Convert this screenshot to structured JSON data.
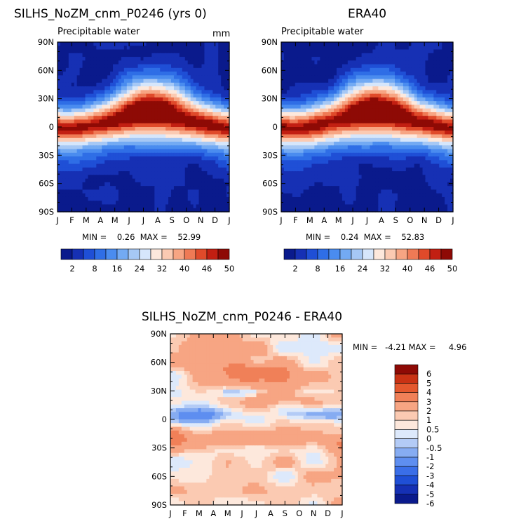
{
  "panels": {
    "model": {
      "title": "SILHS_NoZM_cnm_P0246 (yrs 0)",
      "subtitle": "Precipitable water",
      "units": "mm",
      "min_max": "MIN =    0.26  MAX =    52.99"
    },
    "obs": {
      "title": "ERA40",
      "subtitle": "Precipitable water",
      "min_max": "MIN =    0.24  MAX =    52.83"
    },
    "diff": {
      "title": "SILHS_NoZM_cnm_P0246 - ERA40",
      "min_max": "MIN =   -4.21 MAX =     4.96"
    }
  },
  "colors": {
    "abs_scale": [
      "#0a1a8c",
      "#1630b4",
      "#1f4fd6",
      "#2f6ee6",
      "#4a8cef",
      "#73aaf3",
      "#a6c8f5",
      "#d6e6fb",
      "#fde8dc",
      "#fbcab2",
      "#f7a583",
      "#ef7a55",
      "#e04a2a",
      "#c21f12",
      "#8e0a05"
    ],
    "diff_scale": [
      "#0a1a8c",
      "#1530b4",
      "#1f4fd6",
      "#3a6ee8",
      "#5e8ef0",
      "#86acf2",
      "#b3cbf6",
      "#dde9fb",
      "#fde8dc",
      "#fbcab2",
      "#f7a583",
      "#f08058",
      "#e4582e",
      "#c93214",
      "#8e0a05"
    ]
  },
  "chart_data": [
    {
      "type": "heatmap",
      "title": "SILHS_NoZM_cnm_P0246 (yrs 0)",
      "subtitle": "Precipitable water",
      "units": "mm",
      "x": [
        "J",
        "F",
        "M",
        "A",
        "M",
        "J",
        "J",
        "A",
        "S",
        "O",
        "N",
        "D",
        "J"
      ],
      "y_ticks": [
        "90N",
        "60N",
        "30N",
        "0",
        "30S",
        "60S",
        "90S"
      ],
      "ylim": [
        -90,
        90
      ],
      "colorbar_labels": [
        "2",
        "8",
        "16",
        "24",
        "32",
        "40",
        "46",
        "50"
      ],
      "min": 0.26,
      "max": 52.99,
      "zonal_mean_by_month": {
        "lat": [
          -90,
          -60,
          -30,
          0,
          30,
          60,
          90
        ],
        "J": [
          1,
          8,
          27,
          46,
          19,
          6,
          2
        ],
        "A": [
          0.5,
          6,
          22,
          48,
          26,
          9,
          3
        ],
        "J2": [
          0.3,
          5,
          20,
          52,
          36,
          16,
          8
        ],
        "O": [
          0.5,
          6,
          23,
          48,
          27,
          9,
          3
        ]
      }
    },
    {
      "type": "heatmap",
      "title": "ERA40",
      "subtitle": "Precipitable water",
      "x": [
        "J",
        "F",
        "M",
        "A",
        "M",
        "J",
        "J",
        "A",
        "S",
        "O",
        "N",
        "D",
        "J"
      ],
      "y_ticks": [
        "90N",
        "60N",
        "30N",
        "0",
        "30S",
        "60S",
        "90S"
      ],
      "ylim": [
        -90,
        90
      ],
      "colorbar_labels": [
        "2",
        "8",
        "16",
        "24",
        "32",
        "40",
        "46",
        "50"
      ],
      "min": 0.24,
      "max": 52.83
    },
    {
      "type": "heatmap",
      "title": "SILHS_NoZM_cnm_P0246 - ERA40",
      "x": [
        "J",
        "F",
        "M",
        "A",
        "M",
        "J",
        "J",
        "A",
        "S",
        "O",
        "N",
        "D",
        "J"
      ],
      "y_ticks": [
        "90N",
        "60N",
        "30N",
        "0",
        "30S",
        "60S",
        "90S"
      ],
      "ylim": [
        -90,
        90
      ],
      "colorbar_labels": [
        "6",
        "5",
        "4",
        "3",
        "2",
        "1",
        "0.5",
        "0",
        "-0.5",
        "-1",
        "-2",
        "-3",
        "-4",
        "-5",
        "-6"
      ],
      "min": -4.21,
      "max": 4.96
    }
  ]
}
